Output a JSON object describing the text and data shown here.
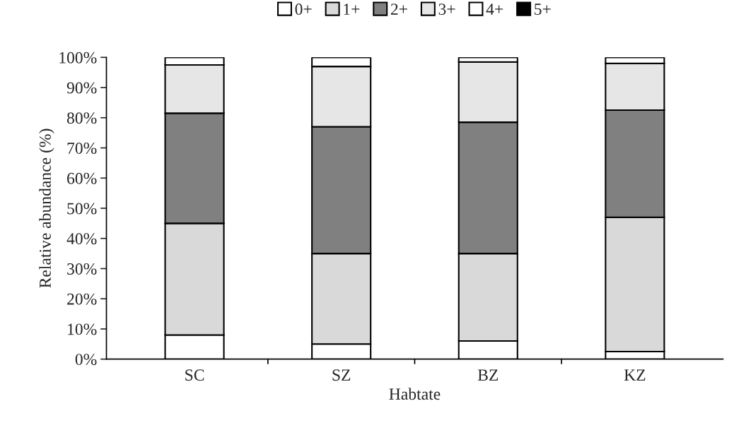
{
  "chart_data": {
    "type": "bar",
    "stacked": true,
    "xlabel": "Habtate",
    "ylabel": "Relative abundance (%)",
    "categories": [
      "SC",
      "SZ",
      "BZ",
      "KZ"
    ],
    "series": [
      {
        "name": "0+",
        "color": "#ffffff",
        "values": [
          8,
          5,
          6,
          2.5
        ]
      },
      {
        "name": "1+",
        "color": "#d9d9d9",
        "values": [
          37,
          30,
          29,
          44.5
        ]
      },
      {
        "name": "2+",
        "color": "#808080",
        "values": [
          36.5,
          42,
          43.5,
          35.5
        ]
      },
      {
        "name": "3+",
        "color": "#e6e6e6",
        "values": [
          16,
          20,
          20,
          15.5
        ]
      },
      {
        "name": "4+",
        "color": "#ffffff",
        "values": [
          2.5,
          3,
          1.5,
          2
        ]
      },
      {
        "name": "5+",
        "color": "#000000",
        "values": [
          0,
          0,
          0,
          0
        ]
      }
    ],
    "ylim": [
      0,
      100
    ],
    "yticks": [
      {
        "value": 0,
        "label": "0%"
      },
      {
        "value": 10,
        "label": "10%"
      },
      {
        "value": 20,
        "label": "20%"
      },
      {
        "value": 30,
        "label": "30%"
      },
      {
        "value": 40,
        "label": "40%"
      },
      {
        "value": 50,
        "label": "50%"
      },
      {
        "value": 60,
        "label": "60%"
      },
      {
        "value": 70,
        "label": "70%"
      },
      {
        "value": 80,
        "label": "80%"
      },
      {
        "value": 90,
        "label": "90%"
      },
      {
        "value": 100,
        "label": "100%"
      }
    ],
    "grid": false,
    "legend": "top"
  }
}
